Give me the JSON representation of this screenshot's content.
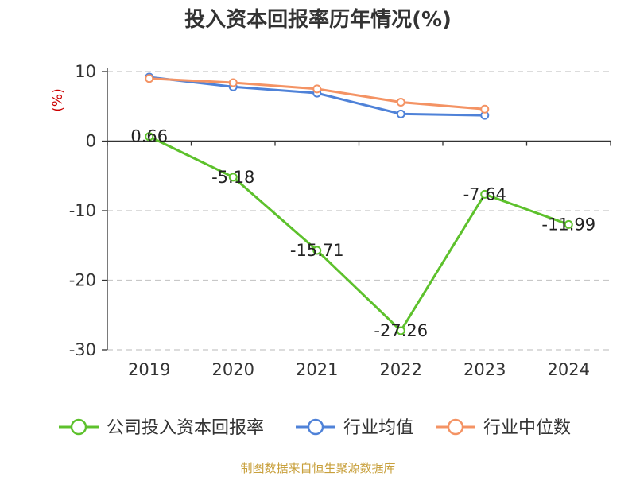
{
  "chart_data": {
    "type": "line",
    "title": "投入资本回报率历年情况(%)",
    "ylabel": "(%)",
    "ylim": [
      -30,
      10
    ],
    "yticks": [
      10,
      0,
      -10,
      -20,
      -30
    ],
    "categories": [
      "2019",
      "2020",
      "2021",
      "2022",
      "2023",
      "2024"
    ],
    "series": [
      {
        "name": "公司投入资本回报率",
        "color": "#5dc12c",
        "values": [
          0.66,
          -5.18,
          -15.71,
          -27.26,
          -7.64,
          -11.99
        ],
        "labels": [
          "0.66",
          "-5.18",
          "-15.71",
          "-27.26",
          "-7.64",
          "-11.99"
        ]
      },
      {
        "name": "行业均值",
        "color": "#4f82d8",
        "values": [
          9.2,
          7.8,
          6.9,
          3.9,
          3.7,
          null
        ]
      },
      {
        "name": "行业中位数",
        "color": "#f49364",
        "values": [
          9.0,
          8.4,
          7.5,
          5.6,
          4.6,
          null
        ]
      }
    ]
  },
  "source_text": "制图数据来自恒生聚源数据库"
}
